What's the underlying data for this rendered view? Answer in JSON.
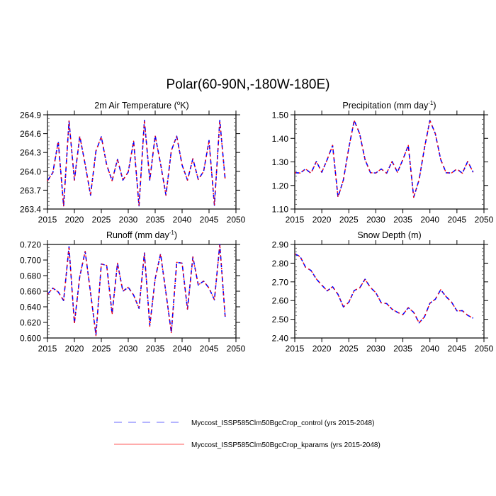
{
  "title": "Polar(60-90N,-180W-180E)",
  "legend": {
    "placement": "bottom-center",
    "entries": [
      {
        "label": "Myccost_ISSP585Clm50BgcCrop_control (yrs 2015-2048)",
        "color": "#0000ff",
        "style": "dashed"
      },
      {
        "label": "Myccost_ISSP585Clm50BgcCrop_kparams (yrs 2015-2048)",
        "color": "#ff0000",
        "style": "solid"
      }
    ]
  },
  "chart_data": [
    {
      "type": "line",
      "title": "2m Air Temperature",
      "title_units": "(",
      "title_sup": "o",
      "title_suffix": "K)",
      "xlabel": "",
      "ylabel": "",
      "xlim": [
        2015,
        2050
      ],
      "ylim": [
        263.4,
        264.9
      ],
      "xticks": [
        2015,
        2020,
        2025,
        2030,
        2035,
        2040,
        2045,
        2050
      ],
      "xtick_labels": [
        "2015",
        "2020",
        "2025",
        "2030",
        "2035",
        "2040",
        "2045",
        "2050"
      ],
      "yticks": [
        263.4,
        263.7,
        264.0,
        264.3,
        264.6,
        264.9
      ],
      "ytick_labels": [
        "263.4",
        "263.7",
        "264.0",
        "264.3",
        "264.6",
        "264.9"
      ],
      "x": [
        2015,
        2016,
        2017,
        2018,
        2019,
        2020,
        2021,
        2022,
        2023,
        2024,
        2025,
        2026,
        2027,
        2028,
        2029,
        2030,
        2031,
        2032,
        2033,
        2034,
        2035,
        2036,
        2037,
        2038,
        2039,
        2040,
        2041,
        2042,
        2043,
        2044,
        2045,
        2046,
        2047,
        2048
      ],
      "series": [
        {
          "name": "Myccost_ISSP585Clm50BgcCrop_control",
          "values": [
            263.85,
            263.98,
            264.48,
            263.45,
            264.8,
            263.86,
            264.56,
            264.11,
            263.62,
            264.32,
            264.55,
            264.1,
            263.85,
            264.19,
            263.86,
            263.99,
            264.48,
            263.45,
            264.81,
            263.86,
            264.57,
            264.12,
            263.62,
            264.33,
            264.56,
            264.1,
            263.86,
            264.2,
            263.87,
            264.0,
            264.49,
            263.46,
            264.81,
            263.87
          ]
        },
        {
          "name": "Myccost_ISSP585Clm50BgcCrop_kparams",
          "values": [
            263.85,
            263.98,
            264.47,
            263.44,
            264.8,
            263.86,
            264.56,
            264.11,
            263.62,
            264.33,
            264.55,
            264.1,
            263.85,
            264.19,
            263.86,
            263.99,
            264.48,
            263.45,
            264.81,
            263.86,
            264.56,
            264.12,
            263.62,
            264.33,
            264.56,
            264.1,
            263.86,
            264.2,
            263.87,
            264.0,
            264.48,
            263.46,
            264.8,
            263.87
          ]
        }
      ]
    },
    {
      "type": "line",
      "title": "Precipitation",
      "title_units": "(mm day",
      "title_sup": "-1",
      "title_suffix": ")",
      "xlabel": "",
      "ylabel": "",
      "xlim": [
        2015,
        2050
      ],
      "ylim": [
        1.1,
        1.5
      ],
      "xticks": [
        2015,
        2020,
        2025,
        2030,
        2035,
        2040,
        2045,
        2050
      ],
      "xtick_labels": [
        "2015",
        "2020",
        "2025",
        "2030",
        "2035",
        "2040",
        "2045",
        "2050"
      ],
      "yticks": [
        1.1,
        1.2,
        1.3,
        1.4,
        1.5
      ],
      "ytick_labels": [
        "1.10",
        "1.20",
        "1.30",
        "1.40",
        "1.50"
      ],
      "x": [
        2015,
        2016,
        2017,
        2018,
        2019,
        2020,
        2021,
        2022,
        2023,
        2024,
        2025,
        2026,
        2027,
        2028,
        2029,
        2030,
        2031,
        2032,
        2033,
        2034,
        2035,
        2036,
        2037,
        2038,
        2039,
        2040,
        2041,
        2042,
        2043,
        2044,
        2045,
        2046,
        2047,
        2048
      ],
      "series": [
        {
          "name": "Myccost_ISSP585Clm50BgcCrop_control",
          "values": [
            1.254,
            1.253,
            1.27,
            1.252,
            1.302,
            1.256,
            1.31,
            1.37,
            1.15,
            1.224,
            1.36,
            1.476,
            1.42,
            1.31,
            1.254,
            1.253,
            1.27,
            1.252,
            1.302,
            1.256,
            1.31,
            1.37,
            1.15,
            1.224,
            1.36,
            1.476,
            1.42,
            1.31,
            1.254,
            1.253,
            1.27,
            1.252,
            1.302,
            1.256
          ]
        },
        {
          "name": "Myccost_ISSP585Clm50BgcCrop_kparams",
          "values": [
            1.254,
            1.253,
            1.27,
            1.252,
            1.302,
            1.256,
            1.31,
            1.37,
            1.15,
            1.224,
            1.36,
            1.476,
            1.42,
            1.31,
            1.254,
            1.253,
            1.27,
            1.252,
            1.302,
            1.256,
            1.31,
            1.37,
            1.15,
            1.224,
            1.36,
            1.476,
            1.42,
            1.31,
            1.254,
            1.253,
            1.27,
            1.252,
            1.302,
            1.256
          ]
        }
      ]
    },
    {
      "type": "line",
      "title": "Runoff",
      "title_units": "(mm day",
      "title_sup": "-1",
      "title_suffix": ")",
      "xlabel": "",
      "ylabel": "",
      "xlim": [
        2015,
        2050
      ],
      "ylim": [
        0.6,
        0.72
      ],
      "xticks": [
        2015,
        2020,
        2025,
        2030,
        2035,
        2040,
        2045,
        2050
      ],
      "xtick_labels": [
        "2015",
        "2020",
        "2025",
        "2030",
        "2035",
        "2040",
        "2045",
        "2050"
      ],
      "yticks": [
        0.6,
        0.62,
        0.64,
        0.66,
        0.68,
        0.7,
        0.72
      ],
      "ytick_labels": [
        "0.600",
        "0.620",
        "0.640",
        "0.660",
        "0.680",
        "0.700",
        "0.720"
      ],
      "x": [
        2015,
        2016,
        2017,
        2018,
        2019,
        2020,
        2021,
        2022,
        2023,
        2024,
        2025,
        2026,
        2027,
        2028,
        2029,
        2030,
        2031,
        2032,
        2033,
        2034,
        2035,
        2036,
        2037,
        2038,
        2039,
        2040,
        2041,
        2042,
        2043,
        2044,
        2045,
        2046,
        2047,
        2048
      ],
      "series": [
        {
          "name": "Myccost_ISSP585Clm50BgcCrop_control",
          "values": [
            0.656,
            0.664,
            0.659,
            0.648,
            0.717,
            0.619,
            0.679,
            0.711,
            0.658,
            0.604,
            0.695,
            0.693,
            0.631,
            0.696,
            0.66,
            0.665,
            0.655,
            0.638,
            0.709,
            0.616,
            0.676,
            0.708,
            0.658,
            0.607,
            0.697,
            0.696,
            0.637,
            0.704,
            0.668,
            0.673,
            0.664,
            0.649,
            0.72,
            0.627
          ]
        },
        {
          "name": "Myccost_ISSP585Clm50BgcCrop_kparams",
          "values": [
            0.656,
            0.664,
            0.659,
            0.648,
            0.717,
            0.618,
            0.679,
            0.711,
            0.658,
            0.603,
            0.695,
            0.693,
            0.63,
            0.696,
            0.66,
            0.665,
            0.655,
            0.638,
            0.709,
            0.615,
            0.676,
            0.708,
            0.658,
            0.606,
            0.697,
            0.696,
            0.636,
            0.704,
            0.668,
            0.673,
            0.664,
            0.649,
            0.72,
            0.627
          ]
        }
      ]
    },
    {
      "type": "line",
      "title": "Snow Depth (m)",
      "title_units": "",
      "title_sup": "",
      "title_suffix": "",
      "xlabel": "",
      "ylabel": "",
      "xlim": [
        2015,
        2050
      ],
      "ylim": [
        2.4,
        2.9
      ],
      "xticks": [
        2015,
        2020,
        2025,
        2030,
        2035,
        2040,
        2045,
        2050
      ],
      "xtick_labels": [
        "2015",
        "2020",
        "2025",
        "2030",
        "2035",
        "2040",
        "2045",
        "2050"
      ],
      "yticks": [
        2.4,
        2.5,
        2.6,
        2.7,
        2.8,
        2.9
      ],
      "ytick_labels": [
        "2.40",
        "2.50",
        "2.60",
        "2.70",
        "2.80",
        "2.90"
      ],
      "x": [
        2015,
        2016,
        2017,
        2018,
        2019,
        2020,
        2021,
        2022,
        2023,
        2024,
        2025,
        2026,
        2027,
        2028,
        2029,
        2030,
        2031,
        2032,
        2033,
        2034,
        2035,
        2036,
        2037,
        2038,
        2039,
        2040,
        2041,
        2042,
        2043,
        2044,
        2045,
        2046,
        2047,
        2048
      ],
      "series": [
        {
          "name": "Myccost_ISSP585Clm50BgcCrop_control",
          "values": [
            2.85,
            2.835,
            2.778,
            2.761,
            2.715,
            2.683,
            2.652,
            2.674,
            2.633,
            2.566,
            2.591,
            2.654,
            2.667,
            2.714,
            2.67,
            2.642,
            2.588,
            2.584,
            2.554,
            2.537,
            2.525,
            2.562,
            2.537,
            2.481,
            2.513,
            2.586,
            2.607,
            2.658,
            2.621,
            2.592,
            2.545,
            2.546,
            2.521,
            2.506
          ]
        },
        {
          "name": "Myccost_ISSP585Clm50BgcCrop_kparams",
          "values": [
            2.85,
            2.835,
            2.778,
            2.761,
            2.715,
            2.683,
            2.652,
            2.674,
            2.633,
            2.566,
            2.591,
            2.654,
            2.667,
            2.714,
            2.67,
            2.642,
            2.588,
            2.584,
            2.554,
            2.537,
            2.525,
            2.562,
            2.537,
            2.481,
            2.513,
            2.586,
            2.607,
            2.658,
            2.621,
            2.592,
            2.545,
            2.546,
            2.521,
            2.506
          ]
        }
      ]
    }
  ]
}
